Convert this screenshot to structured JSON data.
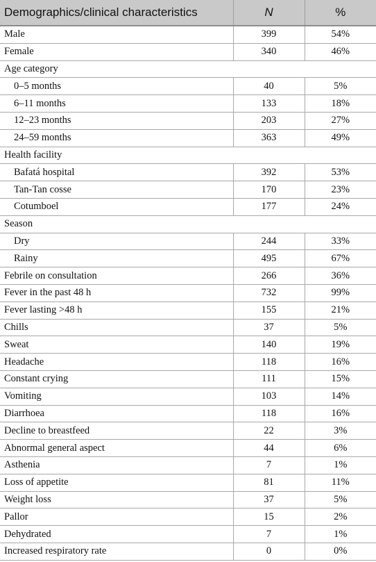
{
  "table": {
    "headers": {
      "label": "Demographics/clinical characteristics",
      "n": "N",
      "pct": "%"
    },
    "rows": [
      {
        "label": "Male",
        "n": "399",
        "pct": "54%"
      },
      {
        "label": "Female",
        "n": "340",
        "pct": "46%"
      },
      {
        "label": "Age category",
        "section": true
      },
      {
        "label": "0–5 months",
        "n": "40",
        "pct": "5%",
        "indent": true
      },
      {
        "label": "6–11 months",
        "n": "133",
        "pct": "18%",
        "indent": true
      },
      {
        "label": "12–23 months",
        "n": "203",
        "pct": "27%",
        "indent": true
      },
      {
        "label": "24–59 months",
        "n": "363",
        "pct": "49%",
        "indent": true
      },
      {
        "label": "Health facility",
        "section": true
      },
      {
        "label": "Bafatá hospital",
        "n": "392",
        "pct": "53%",
        "indent": true
      },
      {
        "label": "Tan-Tan cosse",
        "n": "170",
        "pct": "23%",
        "indent": true
      },
      {
        "label": "Cotumboel",
        "n": "177",
        "pct": "24%",
        "indent": true
      },
      {
        "label": "Season",
        "section": true
      },
      {
        "label": "Dry",
        "n": "244",
        "pct": "33%",
        "indent": true
      },
      {
        "label": "Rainy",
        "n": "495",
        "pct": "67%",
        "indent": true
      },
      {
        "label": "Febrile on consultation",
        "n": "266",
        "pct": "36%"
      },
      {
        "label": "Fever in the past 48 h",
        "n": "732",
        "pct": "99%"
      },
      {
        "label": "Fever lasting >48 h",
        "n": "155",
        "pct": "21%"
      },
      {
        "label": "Chills",
        "n": "37",
        "pct": "5%"
      },
      {
        "label": "Sweat",
        "n": "140",
        "pct": "19%"
      },
      {
        "label": "Headache",
        "n": "118",
        "pct": "16%"
      },
      {
        "label": "Constant crying",
        "n": "111",
        "pct": "15%"
      },
      {
        "label": "Vomiting",
        "n": "103",
        "pct": "14%"
      },
      {
        "label": "Diarrhoea",
        "n": "118",
        "pct": "16%"
      },
      {
        "label": "Decline to breastfeed",
        "n": "22",
        "pct": "3%"
      },
      {
        "label": "Abnormal general aspect",
        "n": "44",
        "pct": "6%"
      },
      {
        "label": "Asthenia",
        "n": "7",
        "pct": "1%"
      },
      {
        "label": "Loss of appetite",
        "n": "81",
        "pct": "11%"
      },
      {
        "label": "Weight loss",
        "n": "37",
        "pct": "5%"
      },
      {
        "label": "Pallor",
        "n": "15",
        "pct": "2%"
      },
      {
        "label": "Dehydrated",
        "n": "7",
        "pct": "1%"
      },
      {
        "label": "Increased respiratory rate",
        "n": "0",
        "pct": "0%"
      }
    ]
  }
}
